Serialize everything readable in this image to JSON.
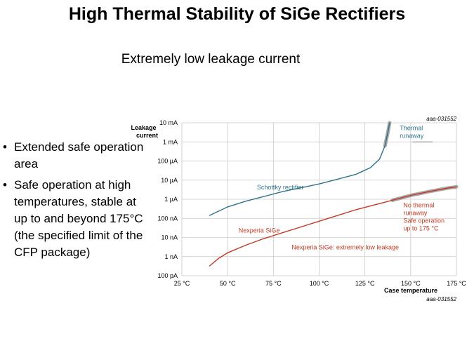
{
  "slide": {
    "title": "High Thermal Stability of SiGe Rectifiers",
    "subtitle": "Extremely low leakage current",
    "bullets": [
      "Extended safe operation area",
      "Safe operation at high temperatures, stable at up to and beyond 175°C (the specified limit of the CFP package)"
    ]
  },
  "chart_data": {
    "type": "line",
    "code": "aaa-031552",
    "ylabel": [
      "Leakage",
      "current"
    ],
    "xlabel": "Case temperature",
    "x_ticks": [
      "25 °C",
      "50 °C",
      "75 °C",
      "100 °C",
      "125 °C",
      "150 °C",
      "175 °C"
    ],
    "y_ticks": [
      "100 pA",
      "1 nA",
      "10 nA",
      "100 nA",
      "1 µA",
      "10 µA",
      "100 µA",
      "1 mA",
      "10 mA"
    ],
    "xlim": [
      25,
      175
    ],
    "ylim_log10_A": [
      -10,
      -2
    ],
    "colors": {
      "schottky": "#2e7489",
      "sige": "#c23a22",
      "highlight": "#8a8a8a",
      "grid": "#c8c8c8"
    },
    "series": [
      {
        "name": "Schottky rectifier",
        "units": "x: °C, y: log10(A)",
        "points": [
          [
            40,
            -6.85
          ],
          [
            50,
            -6.4
          ],
          [
            60,
            -6.1
          ],
          [
            70,
            -5.85
          ],
          [
            80,
            -5.6
          ],
          [
            90,
            -5.4
          ],
          [
            100,
            -5.2
          ],
          [
            110,
            -4.95
          ],
          [
            120,
            -4.7
          ],
          [
            128,
            -4.35
          ],
          [
            133,
            -3.9
          ],
          [
            136,
            -3.2
          ],
          [
            137.5,
            -2.5
          ],
          [
            138.5,
            -2.0
          ]
        ]
      },
      {
        "name": "Nexperia SiGe",
        "units": "x: °C, y: log10(A)",
        "points": [
          [
            40,
            -9.5
          ],
          [
            45,
            -9.1
          ],
          [
            50,
            -8.8
          ],
          [
            60,
            -8.4
          ],
          [
            70,
            -8.05
          ],
          [
            80,
            -7.75
          ],
          [
            90,
            -7.45
          ],
          [
            100,
            -7.15
          ],
          [
            110,
            -6.85
          ],
          [
            120,
            -6.55
          ],
          [
            130,
            -6.3
          ],
          [
            140,
            -6.05
          ],
          [
            150,
            -5.8
          ],
          [
            160,
            -5.6
          ],
          [
            170,
            -5.42
          ],
          [
            175,
            -5.35
          ]
        ]
      }
    ],
    "annotations": {
      "thermal_runaway": [
        "Thermal",
        "runaway"
      ],
      "no_runaway": [
        "No thermal",
        "runaway",
        "Safe operation",
        "up to 175 °C"
      ],
      "extremely_low": "Nexperia SiGe: extremely low leakage"
    }
  }
}
